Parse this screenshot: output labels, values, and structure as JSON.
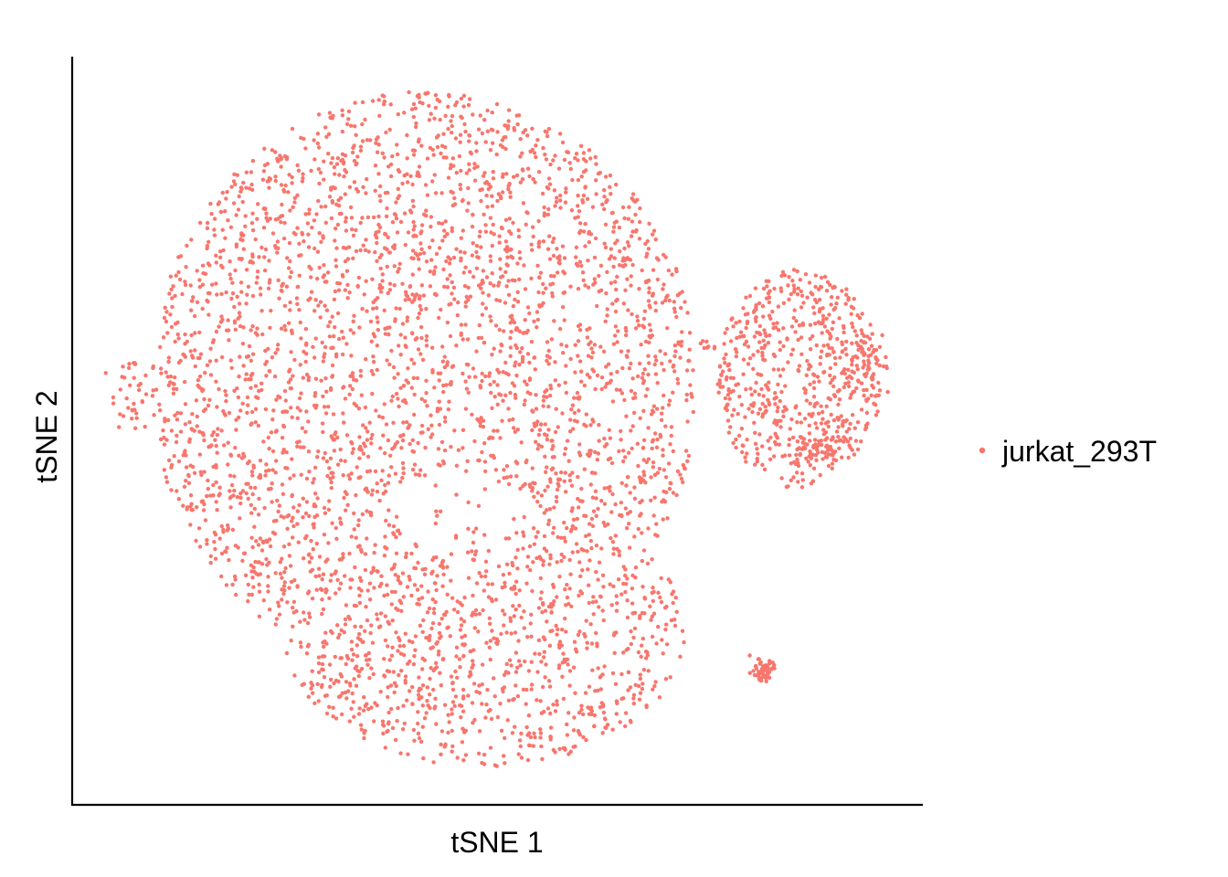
{
  "chart_data": {
    "type": "scatter",
    "title": "",
    "xlabel": "tSNE 1",
    "ylabel": "tSNE 2",
    "xticks": [],
    "yticks": [],
    "grid": false,
    "legend_position": "right",
    "series": [
      {
        "name": "jurkat_293T",
        "color": "#F8766D"
      }
    ]
  }
}
